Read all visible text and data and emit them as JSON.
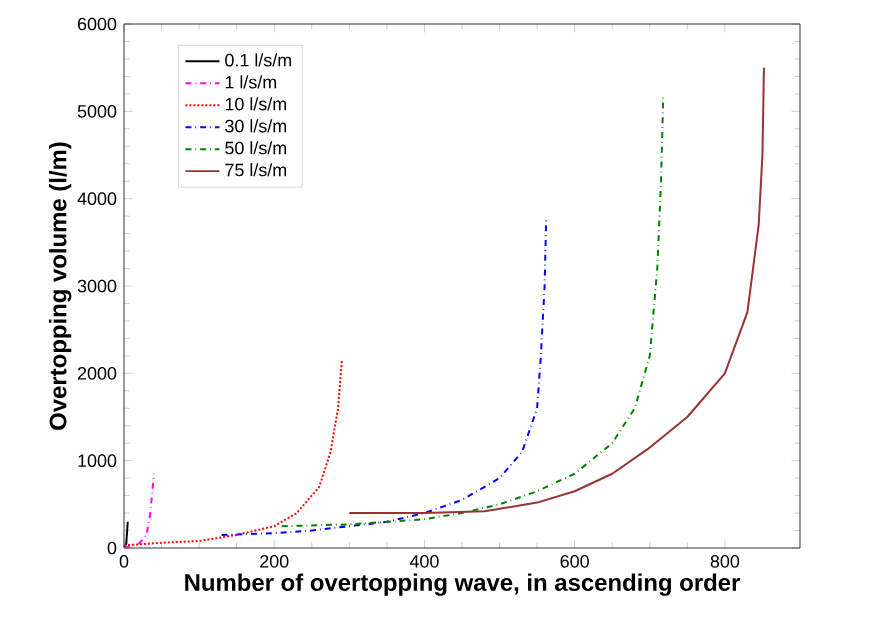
{
  "chart_data": {
    "type": "line",
    "xlabel": "Number of overtopping wave, in ascending order",
    "ylabel": "Overtopping volume (l/m)",
    "xlim": [
      0,
      900
    ],
    "ylim": [
      0,
      6000
    ],
    "xticks": [
      0,
      200,
      400,
      600,
      800
    ],
    "yticks": [
      0,
      1000,
      2000,
      3000,
      4000,
      5000,
      6000
    ],
    "grid": false,
    "legend": "top left",
    "marker": "none",
    "series": [
      {
        "name": "0.1 l/s/m",
        "color": "#000000",
        "line_style": "solid",
        "x": [
          0,
          3,
          5
        ],
        "values": [
          0,
          50,
          300
        ]
      },
      {
        "name": "1 l/s/m",
        "color": "#ff00ff",
        "line_style": "dashdot",
        "x": [
          0,
          20,
          30,
          35,
          40
        ],
        "values": [
          0,
          50,
          150,
          400,
          850
        ]
      },
      {
        "name": "10 l/s/m",
        "color": "#ff0000",
        "line_style": "dotted",
        "x": [
          0,
          50,
          100,
          150,
          200,
          230,
          260,
          275,
          285,
          290
        ],
        "values": [
          30,
          60,
          80,
          150,
          250,
          400,
          700,
          1100,
          1600,
          2150
        ]
      },
      {
        "name": "30 l/s/m",
        "color": "#0000ff",
        "line_style": "dashdot",
        "x": [
          130,
          200,
          250,
          300,
          350,
          400,
          450,
          500,
          530,
          550,
          555,
          560,
          562
        ],
        "values": [
          150,
          170,
          200,
          250,
          300,
          400,
          550,
          800,
          1100,
          1600,
          2200,
          3000,
          3750
        ]
      },
      {
        "name": "50 l/s/m",
        "color": "#008000",
        "line_style": "dashdot",
        "x": [
          210,
          300,
          400,
          450,
          500,
          550,
          600,
          650,
          680,
          700,
          710,
          715,
          718
        ],
        "values": [
          250,
          270,
          330,
          400,
          500,
          650,
          850,
          1200,
          1600,
          2200,
          3200,
          4200,
          5200
        ]
      },
      {
        "name": "75 l/s/m",
        "color": "#993333",
        "line_style": "solid",
        "x": [
          300,
          400,
          480,
          550,
          600,
          650,
          700,
          750,
          800,
          830,
          845,
          850,
          852
        ],
        "values": [
          400,
          400,
          420,
          520,
          650,
          850,
          1150,
          1500,
          2000,
          2700,
          3700,
          4500,
          5500
        ]
      }
    ]
  }
}
